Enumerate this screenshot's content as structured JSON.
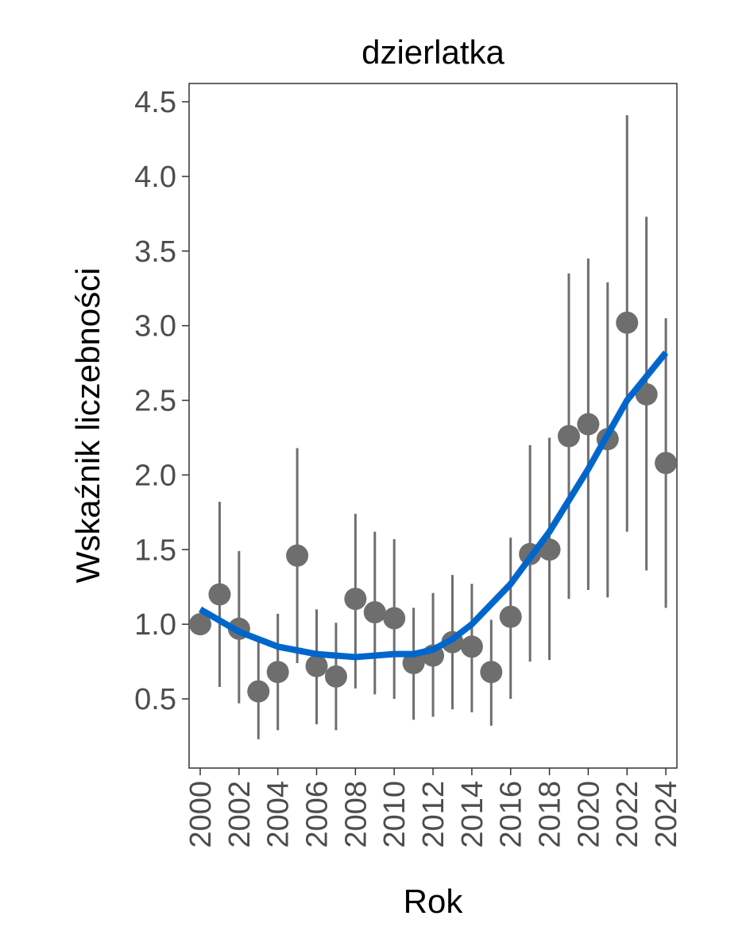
{
  "chart_data": {
    "type": "scatter",
    "title": "dzierlatka",
    "xlabel": "Rok",
    "ylabel": "Wskaźnik liczebności",
    "xlim": [
      1999.5,
      2024.6
    ],
    "ylim": [
      0.05,
      4.65
    ],
    "x_ticks": [
      "2000",
      "2002",
      "2004",
      "2006",
      "2008",
      "2010",
      "2012",
      "2014",
      "2016",
      "2018",
      "2020",
      "2022",
      "2024"
    ],
    "y_ticks": [
      "0.5",
      "1.0",
      "1.5",
      "2.0",
      "2.5",
      "3.0",
      "3.5",
      "4.0",
      "4.5"
    ],
    "grid": false,
    "point_color": "#6e6e6e",
    "trend_color": "#0066cc",
    "points": {
      "x": [
        2000,
        2001,
        2002,
        2003,
        2004,
        2005,
        2006,
        2007,
        2008,
        2009,
        2010,
        2011,
        2012,
        2013,
        2014,
        2015,
        2016,
        2017,
        2018,
        2019,
        2020,
        2021,
        2022,
        2023,
        2024
      ],
      "y": [
        1.0,
        1.2,
        0.97,
        0.55,
        0.68,
        1.46,
        0.72,
        0.65,
        1.17,
        1.08,
        1.04,
        0.74,
        0.79,
        0.88,
        0.85,
        0.68,
        1.05,
        1.47,
        1.5,
        2.26,
        2.34,
        2.24,
        3.02,
        2.54,
        2.08
      ],
      "lower": [
        null,
        0.58,
        0.47,
        0.23,
        0.29,
        0.74,
        0.33,
        0.29,
        0.57,
        0.53,
        0.5,
        0.36,
        0.38,
        0.43,
        0.41,
        0.32,
        0.5,
        0.75,
        0.76,
        1.17,
        1.23,
        1.18,
        1.62,
        1.36,
        1.11
      ],
      "upper": [
        null,
        1.82,
        1.49,
        0.88,
        1.07,
        2.18,
        1.1,
        1.01,
        1.74,
        1.62,
        1.57,
        1.11,
        1.21,
        1.33,
        1.27,
        1.03,
        1.58,
        2.2,
        2.25,
        3.35,
        3.45,
        3.29,
        4.41,
        3.73,
        3.05
      ]
    },
    "trend": {
      "x": [
        2000,
        2002,
        2004,
        2006,
        2008,
        2010,
        2011,
        2012,
        2013,
        2014,
        2016,
        2018,
        2020,
        2022,
        2024
      ],
      "y": [
        1.1,
        0.95,
        0.85,
        0.8,
        0.78,
        0.8,
        0.8,
        0.83,
        0.9,
        1.0,
        1.27,
        1.62,
        2.04,
        2.5,
        2.82
      ]
    }
  }
}
